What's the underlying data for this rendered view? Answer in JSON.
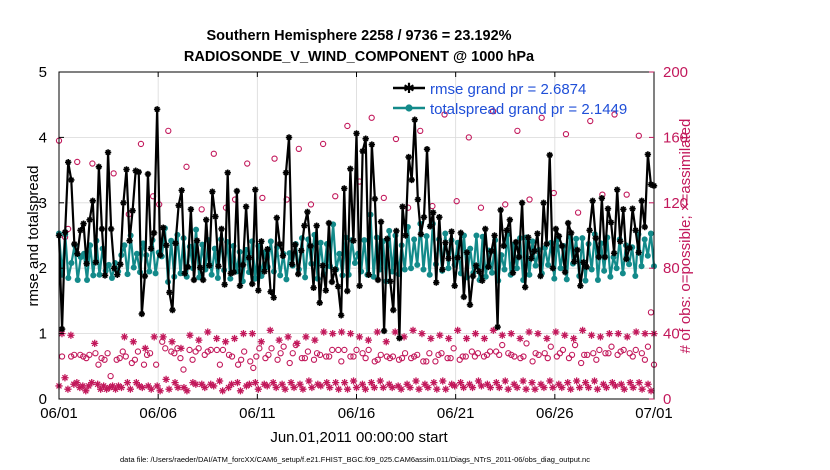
{
  "chart_data": {
    "type": "line",
    "title_line1": "Southern Hemisphere 2258 / 9736 = 23.192%",
    "title_line2": "RADIOSONDE_V_WIND_COMPONENT @ 1000 hPa",
    "xlabel": "Jun.01,2011 00:00:00 start",
    "ylabel": "rmse and totalspread",
    "ylabel_right": "# of obs: o=possible; ×=assimilated",
    "footer": "data file: /Users/raeder/DAI/ATM_forcXX/CAM6_setup/f.e21.FHIST_BGC.f09_025.CAM6assim.011/Diags_NTrS_2011-06/obs_diag_output.nc",
    "xlim": [
      0,
      30
    ],
    "ylim": [
      0,
      5
    ],
    "ylim_right": [
      0,
      200
    ],
    "x_ticks": [
      0,
      5,
      10,
      15,
      20,
      25,
      30
    ],
    "x_tick_labels": [
      "06/01",
      "06/06",
      "06/11",
      "06/16",
      "06/21",
      "06/26",
      "07/01"
    ],
    "y_ticks": [
      0,
      1,
      2,
      3,
      4,
      5
    ],
    "y_tick_labels": [
      "0",
      "1",
      "2",
      "3",
      "4",
      "5"
    ],
    "y_right_ticks": [
      0,
      40,
      80,
      120,
      160,
      200
    ],
    "y_right_tick_labels": [
      "0",
      "40",
      "80",
      "120",
      "160",
      "200"
    ],
    "series": [
      {
        "name": "rmse grand pr = 2.6874",
        "color": "#000000",
        "axis": "left",
        "values": [
          2.5,
          1.07,
          2.55,
          3.62,
          3.35,
          2.37,
          2.22,
          2.58,
          2.68,
          2.07,
          2.74,
          3.03,
          2.09,
          3.55,
          2.6,
          1.89,
          3.77,
          2.6,
          2.0,
          1.9,
          2.06,
          3.0,
          3.51,
          2.42,
          2.88,
          3.49,
          3.47,
          1.3,
          1.88,
          3.44,
          2.3,
          2.54,
          4.43,
          2.2,
          2.62,
          2.35,
          1.63,
          1.36,
          2.38,
          2.96,
          3.19,
          1.92,
          2.02,
          2.9,
          1.82,
          2.42,
          2.01,
          1.82,
          2.74,
          2.04,
          3.17,
          2.79,
          2.03,
          2.6,
          1.75,
          3.46,
          1.92,
          1.94,
          3.18,
          1.73,
          2.05,
          2.94,
          2.16,
          1.76,
          3.2,
          1.66,
          2.41,
          1.95,
          2.29,
          1.64,
          1.55,
          2.77,
          2.37,
          2.19,
          3.46,
          4.0,
          2.06,
          2.36,
          1.91,
          2.27,
          2.65,
          2.86,
          2.34,
          1.7,
          2.65,
          1.47,
          2.04,
          1.66,
          2.69,
          1.79,
          1.98,
          1.72,
          1.28,
          3.22,
          1.65,
          3.52,
          2.42,
          4.06,
          1.73,
          3.79,
          3.98,
          1.9,
          3.89,
          3.06,
          1.82,
          2.71,
          1.04,
          2.45,
          1.8,
          1.36,
          2.57,
          0.93,
          2.94,
          2.5,
          3.7,
          3.35,
          4.27,
          3.05,
          2.52,
          2.78,
          3.82,
          2.64,
          2.85,
          1.78,
          2.78,
          1.98,
          2.39,
          2.15,
          2.56,
          1.73,
          2.16,
          2.54,
          1.56,
          2.24,
          1.44,
          1.88,
          2.04,
          1.95,
          1.81,
          2.6,
          2.02,
          2.26,
          2.5,
          1.1,
          2.89,
          2.34,
          2.58,
          2.74,
          1.93,
          2.4,
          2.17,
          3.0,
          1.71,
          2.47,
          2.15,
          2.26,
          2.53,
          1.88,
          3.0,
          2.37,
          3.73,
          2.0,
          2.6,
          2.49,
          2.34,
          1.94,
          2.69,
          2.54,
          2.1,
          2.28,
          1.73,
          2.09,
          2.02,
          2.58,
          3.03,
          2.46,
          2.17,
          3.07,
          2.17,
          2.91,
          2.7,
          2.23,
          3.2,
          2.41,
          2.9,
          2.14,
          2.31,
          2.91,
          2.58,
          2.24,
          3.03,
          2.63,
          3.74,
          3.28,
          3.26
        ]
      },
      {
        "name": "totalspread grand pr = 2.1449",
        "color": "#138a8a",
        "axis": "left",
        "values": [
          2.53,
          1.9,
          2.52,
          1.85,
          2.08,
          2.35,
          1.82,
          2.17,
          2.22,
          1.82,
          2.35,
          1.89,
          2.42,
          1.9,
          2.3,
          1.96,
          2.05,
          1.85,
          2.08,
          1.95,
          2.2,
          2.35,
          1.91,
          2.5,
          2.01,
          2.22,
          1.94,
          2.38,
          2.2,
          1.95,
          2.43,
          1.92,
          2.24,
          2.18,
          2.61,
          1.79,
          2.42,
          1.87,
          2.51,
          1.92,
          2.46,
          1.87,
          2.33,
          2.0,
          2.59,
          1.86,
          2.36,
          1.98,
          2.43,
          1.9,
          2.3,
          1.85,
          2.44,
          1.97,
          2.4,
          1.84,
          2.34,
          1.95,
          2.25,
          1.8,
          2.28,
          1.94,
          2.41,
          1.84,
          2.34,
          1.88,
          2.24,
          2.02,
          2.41,
          1.95,
          2.32,
          1.89,
          2.22,
          1.83,
          2.23,
          2.04,
          2.37,
          1.98,
          2.46,
          1.86,
          2.44,
          2.07,
          2.51,
          1.84,
          2.39,
          1.91,
          2.37,
          2.03,
          2.67,
          1.98,
          2.22,
          1.89,
          2.47,
          1.9,
          2.43,
          2.08,
          2.22,
          1.95,
          2.43,
          1.9,
          2.82,
          1.87,
          2.47,
          1.98,
          2.41,
          1.8,
          2.57,
          1.95,
          2.5,
          1.91,
          2.35,
          1.98,
          2.63,
          2.0,
          2.44,
          2.05,
          2.68,
          1.98,
          2.49,
          1.9,
          2.68,
          2.06,
          2.44,
          1.96,
          2.53,
          2.0,
          2.43,
          2.05,
          2.39,
          1.92,
          2.5,
          1.86,
          2.3,
          1.93,
          2.5,
          1.82,
          2.48,
          1.87,
          2.27,
          1.93,
          2.43,
          1.81,
          2.2,
          1.98,
          2.52,
          1.9,
          2.36,
          2.0,
          2.46,
          1.82,
          2.47,
          1.9,
          2.41,
          2.04,
          2.28,
          1.92,
          2.31,
          2.05,
          2.39,
          1.84,
          2.44,
          2.0,
          2.34,
          1.83,
          2.48,
          2.07,
          2.45,
          1.88,
          2.46,
          1.81,
          2.37,
          1.98,
          2.52,
          1.82,
          2.38,
          1.96,
          2.47,
          1.87,
          2.17,
          2.0,
          2.44,
          1.92,
          2.35,
          2.06,
          2.32,
          1.88,
          2.52,
          2.03,
          2.44,
          2.19,
          2.53,
          2.03
        ]
      }
    ],
    "obs_possible": {
      "name": "possible",
      "marker": "o",
      "color": "#c2185b",
      "axis": "right",
      "values": [
        158,
        26,
        99,
        104,
        26,
        27,
        145,
        27,
        26,
        25,
        27,
        144,
        28,
        21,
        25,
        24,
        28,
        14,
        138,
        24,
        25,
        29,
        26,
        113,
        22,
        24,
        29,
        156,
        21,
        27,
        28,
        124,
        21,
        119,
        35,
        31,
        164,
        29,
        28,
        31,
        25,
        18,
        142,
        30,
        24,
        29,
        31,
        116,
        27,
        29,
        30,
        150,
        30,
        21,
        30,
        117,
        27,
        26,
        122,
        21,
        24,
        29,
        144,
        23,
        19,
        26,
        31,
        123,
        25,
        27,
        31,
        147,
        24,
        28,
        32,
        122,
        22,
        28,
        33,
        153,
        25,
        25,
        29,
        119,
        24,
        28,
        27,
        156,
        26,
        26,
        30,
        124,
        30,
        23,
        30,
        167,
        26,
        26,
        30,
        133,
        28,
        25,
        30,
        172,
        23,
        24,
        27,
        123,
        26,
        25,
        26,
        159,
        24,
        25,
        28,
        117,
        25,
        26,
        27,
        164,
        23,
        23,
        28,
        118,
        23,
        27,
        28,
        174,
        25,
        25,
        31,
        121,
        24,
        26,
        26,
        160,
        29,
        26,
        28,
        117,
        26,
        27,
        29,
        176,
        29,
        27,
        33,
        119,
        28,
        27,
        26,
        164,
        25,
        26,
        34,
        122,
        23,
        28,
        27,
        172,
        28,
        25,
        32,
        126,
        26,
        28,
        30,
        162,
        25,
        27,
        33,
        114,
        22,
        27,
        27,
        170,
        28,
        24,
        30,
        125,
        28,
        28,
        32,
        174,
        27,
        29,
        30,
        125,
        28,
        26,
        30,
        161,
        28,
        24,
        32,
        53,
        21
      ]
    },
    "obs_assimilated": {
      "name": "assimilated",
      "marker": "*",
      "color": "#c2185b",
      "axis": "right",
      "values": [
        8,
        40,
        13,
        6,
        39,
        9,
        10,
        7,
        8,
        5,
        8,
        10,
        34,
        9,
        6,
        8,
        6,
        7,
        8,
        6,
        8,
        7,
        38,
        10,
        6,
        35,
        10,
        8,
        7,
        31,
        8,
        6,
        38,
        8,
        5,
        38,
        12,
        6,
        35,
        10,
        7,
        31,
        7,
        5,
        39,
        10,
        9,
        36,
        9,
        7,
        41,
        9,
        8,
        37,
        11,
        5,
        35,
        7,
        9,
        37,
        10,
        5,
        40,
        8,
        9,
        40,
        10,
        6,
        35,
        9,
        8,
        42,
        10,
        7,
        36,
        9,
        6,
        38,
        10,
        7,
        34,
        9,
        6,
        38,
        11,
        7,
        36,
        9,
        8,
        41,
        10,
        7,
        40,
        10,
        6,
        41,
        10,
        6,
        40,
        11,
        7,
        38,
        9,
        6,
        36,
        10,
        7,
        41,
        11,
        7,
        35,
        9,
        7,
        41,
        8,
        6,
        38,
        9,
        7,
        42,
        11,
        6,
        40,
        9,
        7,
        37,
        10,
        6,
        39,
        11,
        6,
        37,
        9,
        8,
        42,
        10,
        7,
        37,
        9,
        7,
        40,
        11,
        8,
        37,
        9,
        7,
        42,
        10,
        7,
        39,
        11,
        6,
        40,
        9,
        7,
        37,
        11,
        6,
        41,
        10,
        6,
        40,
        9,
        7,
        37,
        11,
        7,
        41,
        9,
        7,
        39,
        10,
        6,
        37,
        11,
        7,
        42,
        10,
        7,
        39,
        11,
        6,
        38,
        9,
        7,
        40,
        10,
        8,
        40,
        9,
        6,
        38,
        10,
        7,
        41,
        10,
        6,
        40,
        9,
        5,
        40
      ]
    }
  }
}
